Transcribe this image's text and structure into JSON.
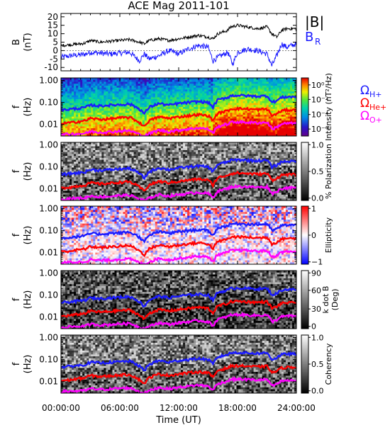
{
  "chart_data": {
    "title": "ACE Mag 2011-101",
    "xlabel": "Time (UT)",
    "x_ticks": [
      "00:00:00",
      "06:00:00",
      "12:00:00",
      "18:00:00",
      "24:00:00"
    ],
    "x_range_hours": [
      0,
      24
    ],
    "colors": {
      "black": "#000000",
      "blue": "#1a1aff",
      "red": "#ff0000",
      "magenta": "#ff00ff"
    },
    "panels": [
      {
        "type": "line",
        "ylabel_top": "B",
        "ylabel_bottom": "(nT)",
        "ylim": [
          -12,
          22
        ],
        "y_ticks": [
          "-10",
          "-5",
          "0",
          "5",
          "10",
          "15",
          "20"
        ],
        "y_values": [
          -10,
          -5,
          0,
          5,
          10,
          15,
          20
        ],
        "legend": [
          {
            "label": "|B|",
            "color": "#000000"
          },
          {
            "label": "B",
            "sub": "R",
            "color": "#1a1aff"
          }
        ],
        "series": [
          {
            "label": "|B|",
            "color": "#000000",
            "x": [
              0,
              1,
              2,
              2.5,
              3,
              4,
              5,
              6,
              7,
              8,
              8.5,
              9,
              10,
              11,
              12,
              13,
              14,
              15,
              15.5,
              16,
              17,
              17.3,
              18,
              19,
              20,
              21,
              21.5,
              22,
              22.5,
              23,
              24
            ],
            "y": [
              3,
              3.5,
              4,
              4.5,
              6,
              5,
              5.5,
              6,
              6.5,
              5,
              4,
              6,
              7,
              6,
              7,
              8,
              9,
              8,
              7,
              10,
              12,
              14,
              15,
              14,
              13,
              14,
              10,
              8,
              12,
              13,
              13
            ]
          },
          {
            "label": "B_R",
            "color": "#1a1aff",
            "x": [
              0,
              1,
              2,
              2.5,
              3,
              4,
              5,
              6,
              7,
              8,
              8.5,
              9,
              10,
              11,
              12,
              13,
              14,
              15,
              15.5,
              16,
              17,
              17.5,
              18,
              19,
              20,
              21,
              21.5,
              22,
              22.5,
              23,
              24
            ],
            "y": [
              -4,
              -3,
              -2.5,
              -2,
              -1,
              -1.5,
              -2,
              -1.5,
              -1,
              -6,
              -2,
              -5,
              -3,
              0,
              -2,
              1,
              3,
              2,
              -6,
              -4,
              -1,
              -8,
              -1,
              1,
              0,
              -2,
              -9,
              -3,
              4,
              2,
              4
            ]
          }
        ]
      },
      {
        "type": "heatmap",
        "ylabel_top": "f",
        "ylabel_bottom": "(Hz)",
        "yscale": "log",
        "ylim": [
          0.003,
          1.3
        ],
        "y_ticks": [
          "1.00",
          "0.10",
          "0.01"
        ],
        "y_values": [
          1,
          0.1,
          0.01
        ],
        "colorbar": {
          "label": "Intensity (nT²/Hz)",
          "ticks": [
            "10⁰",
            "10⁻²",
            "10⁻⁴",
            "10⁻⁶"
          ],
          "tick_positions": [
            0.12,
            0.37,
            0.63,
            0.88
          ],
          "scheme": "rainbow"
        },
        "legend": [
          {
            "label": "Ω",
            "sub": "H+",
            "color": "#1a1aff"
          },
          {
            "label": "Ω",
            "sub": "He+",
            "color": "#ff0000"
          },
          {
            "label": "Ω",
            "sub": "O+",
            "color": "#ff00ff"
          }
        ]
      },
      {
        "type": "heatmap",
        "ylabel_top": "f",
        "ylabel_bottom": "(Hz)",
        "yscale": "log",
        "ylim": [
          0.003,
          1.3
        ],
        "y_ticks": [
          "1.00",
          "0.10",
          "0.01"
        ],
        "y_values": [
          1,
          0.1,
          0.01
        ],
        "colorbar": {
          "label": "% Polarization",
          "ticks": [
            "1.0",
            "0.5",
            "0.0"
          ],
          "tick_positions": [
            0.04,
            0.5,
            0.96
          ],
          "scheme": "gray"
        }
      },
      {
        "type": "heatmap",
        "ylabel_top": "f",
        "ylabel_bottom": "(Hz)",
        "yscale": "log",
        "ylim": [
          0.003,
          1.3
        ],
        "y_ticks": [
          "1.00",
          "0.10",
          "0.01"
        ],
        "y_values": [
          1,
          0.1,
          0.01
        ],
        "colorbar": {
          "label": "Ellipticity",
          "ticks": [
            "1",
            "0",
            "−1"
          ],
          "tick_positions": [
            0.04,
            0.5,
            0.96
          ],
          "scheme": "bwr"
        }
      },
      {
        "type": "heatmap",
        "ylabel_top": "f",
        "ylabel_bottom": "(Hz)",
        "yscale": "log",
        "ylim": [
          0.003,
          1.3
        ],
        "y_ticks": [
          "1.00",
          "0.10",
          "0.01"
        ],
        "y_values": [
          1,
          0.1,
          0.01
        ],
        "colorbar": {
          "label": "k dot B",
          "label2": "(Deg)",
          "ticks": [
            "90",
            "60",
            "30",
            "0"
          ],
          "tick_positions": [
            0.04,
            0.34,
            0.66,
            0.96
          ],
          "scheme": "gray"
        }
      },
      {
        "type": "heatmap",
        "ylabel_top": "f",
        "ylabel_bottom": "(Hz)",
        "yscale": "log",
        "ylim": [
          0.003,
          1.3
        ],
        "y_ticks": [
          "1.00",
          "0.10",
          "0.01"
        ],
        "y_values": [
          1,
          0.1,
          0.01
        ],
        "colorbar": {
          "label": "Coherency",
          "ticks": [
            "1.0",
            "0.5",
            "0.0"
          ],
          "tick_positions": [
            0.04,
            0.5,
            0.96
          ],
          "scheme": "gray"
        }
      }
    ],
    "gyro_lines": {
      "x": [
        0,
        1,
        2,
        2.5,
        3,
        4,
        5,
        6,
        7,
        8,
        8.5,
        9,
        10,
        11,
        12,
        13,
        14,
        15,
        15.5,
        16,
        17,
        17.3,
        18,
        19,
        20,
        21,
        21.5,
        22,
        22.5,
        23,
        24
      ],
      "H+": [
        0.045,
        0.05,
        0.055,
        0.06,
        0.075,
        0.07,
        0.075,
        0.08,
        0.085,
        0.05,
        0.03,
        0.06,
        0.09,
        0.075,
        0.09,
        0.1,
        0.11,
        0.1,
        0.06,
        0.13,
        0.17,
        0.2,
        0.21,
        0.2,
        0.19,
        0.2,
        0.1,
        0.12,
        0.17,
        0.18,
        0.18
      ],
      "He+": [
        0.011,
        0.012,
        0.014,
        0.015,
        0.019,
        0.017,
        0.018,
        0.02,
        0.021,
        0.012,
        0.008,
        0.015,
        0.022,
        0.019,
        0.022,
        0.025,
        0.028,
        0.025,
        0.015,
        0.032,
        0.042,
        0.05,
        0.053,
        0.05,
        0.047,
        0.05,
        0.025,
        0.03,
        0.042,
        0.045,
        0.045
      ],
      "O+": [
        0.0035,
        0.0037,
        0.0038,
        0.004,
        0.0048,
        0.0044,
        0.0046,
        0.005,
        0.0052,
        0.0035,
        0.003,
        0.0038,
        0.0055,
        0.0047,
        0.0055,
        0.0062,
        0.007,
        0.0062,
        0.004,
        0.008,
        0.0105,
        0.0125,
        0.013,
        0.0125,
        0.0118,
        0.0125,
        0.0062,
        0.0075,
        0.0105,
        0.0112,
        0.0112
      ]
    }
  }
}
